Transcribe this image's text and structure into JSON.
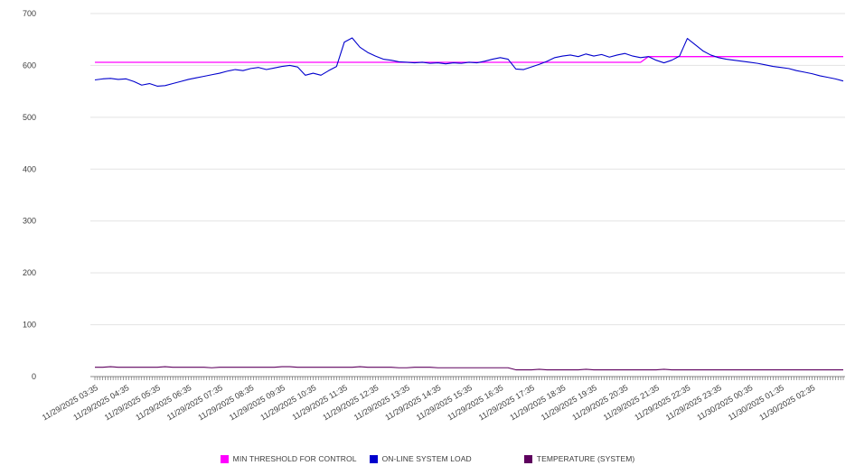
{
  "colors": {
    "background": "#ffffff",
    "grid": "#e3e3e3",
    "axis": "#8a8a8a",
    "tick": "#5a5a5a",
    "label": "#3c3c3c"
  },
  "chart_data": {
    "type": "line",
    "title": "",
    "xlabel": "",
    "ylabel": "",
    "ylim": [
      0,
      700
    ],
    "yticks": [
      0,
      100,
      200,
      300,
      400,
      500,
      600,
      700
    ],
    "grid": "horizontal",
    "legend_position": "bottom",
    "x_minutes_per_point": 15,
    "x_labels": [
      "11/29/2025 03:35",
      "11/29/2025 04:35",
      "11/29/2025 05:35",
      "11/29/2025 06:35",
      "11/29/2025 07:35",
      "11/29/2025 08:35",
      "11/29/2025 09:35",
      "11/29/2025 10:35",
      "11/29/2025 11:35",
      "11/29/2025 12:35",
      "11/29/2025 13:35",
      "11/29/2025 14:35",
      "11/29/2025 15:35",
      "11/29/2025 16:35",
      "11/29/2025 17:35",
      "11/29/2025 18:35",
      "11/29/2025 19:35",
      "11/29/2025 20:35",
      "11/29/2025 21:35",
      "11/29/2025 22:35",
      "11/29/2025 23:35",
      "11/30/2025 00:35",
      "11/30/2025 01:35",
      "11/30/2025 02:35"
    ],
    "series": [
      {
        "name": "MIN THRESHOLD FOR CONTROL",
        "color": "#ff00ff",
        "values": [
          606,
          606,
          606,
          606,
          606,
          606,
          606,
          606,
          606,
          606,
          606,
          606,
          606,
          606,
          606,
          606,
          606,
          606,
          606,
          606,
          606,
          606,
          606,
          606,
          606,
          606,
          606,
          606,
          606,
          606,
          606,
          606,
          606,
          606,
          606,
          606,
          606,
          606,
          606,
          606,
          606,
          606,
          606,
          606,
          606,
          606,
          606,
          606,
          606,
          606,
          606,
          606,
          606,
          606,
          606,
          606,
          606,
          606,
          606,
          606,
          606,
          606,
          606,
          606,
          606,
          606,
          606,
          606,
          606,
          606,
          606,
          617,
          617,
          617,
          617,
          617,
          617,
          617,
          617,
          617,
          617,
          617,
          617,
          617,
          617,
          617,
          617,
          617,
          617,
          617,
          617,
          617,
          617,
          617,
          617,
          617,
          617
        ]
      },
      {
        "name": "ON-LINE SYSTEM LOAD",
        "color": "#0000cd",
        "values": [
          572,
          574,
          575,
          573,
          574,
          569,
          562,
          565,
          560,
          561,
          565,
          569,
          573,
          576,
          579,
          582,
          585,
          589,
          592,
          590,
          594,
          596,
          592,
          595,
          598,
          600,
          597,
          581,
          585,
          581,
          590,
          598,
          645,
          653,
          635,
          625,
          618,
          612,
          610,
          607,
          606,
          605,
          606,
          604,
          605,
          603,
          605,
          604,
          606,
          605,
          608,
          612,
          615,
          612,
          593,
          592,
          597,
          602,
          608,
          615,
          618,
          620,
          617,
          622,
          618,
          621,
          616,
          620,
          623,
          618,
          615,
          617,
          610,
          605,
          610,
          618,
          652,
          640,
          628,
          620,
          615,
          612,
          610,
          608,
          606,
          604,
          601,
          598,
          596,
          594,
          590,
          587,
          584,
          580,
          577,
          574,
          570
        ]
      },
      {
        "name": "TEMPERATURE (SYSTEM)",
        "color": "#5e005e",
        "values": [
          18,
          18,
          19,
          18,
          18,
          18,
          18,
          18,
          18,
          19,
          18,
          18,
          18,
          18,
          18,
          17,
          18,
          18,
          18,
          18,
          18,
          18,
          18,
          18,
          19,
          19,
          18,
          18,
          18,
          18,
          18,
          18,
          18,
          18,
          19,
          18,
          18,
          18,
          18,
          17,
          17,
          18,
          18,
          18,
          17,
          17,
          17,
          17,
          17,
          17,
          17,
          17,
          17,
          17,
          13,
          13,
          13,
          14,
          13,
          13,
          13,
          13,
          13,
          14,
          13,
          13,
          13,
          13,
          13,
          13,
          13,
          13,
          13,
          14,
          13,
          13,
          13,
          13,
          13,
          13,
          13,
          13,
          13,
          13,
          13,
          13,
          13,
          13,
          13,
          13,
          13,
          13,
          13,
          13,
          13,
          13,
          13
        ]
      }
    ]
  }
}
